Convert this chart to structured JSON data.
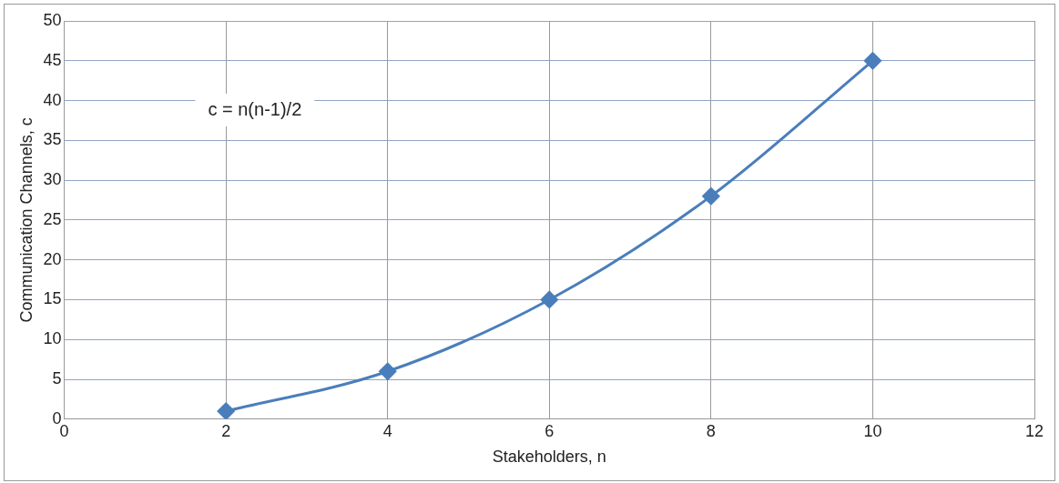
{
  "chart_data": {
    "type": "line",
    "xlabel": "Stakeholders, n",
    "ylabel": "Communication Channels, c",
    "x": [
      2,
      4,
      6,
      8,
      10
    ],
    "series": [
      {
        "color": "#4a7ebb",
        "values": [
          1,
          6,
          15,
          28,
          45
        ]
      }
    ],
    "xlim": [
      0,
      12
    ],
    "xticks": [
      0,
      2,
      4,
      6,
      8,
      10,
      12
    ],
    "ylim": [
      0,
      50
    ],
    "yticks": [
      0,
      5,
      10,
      15,
      20,
      25,
      30,
      35,
      40,
      45,
      50
    ],
    "grid": true,
    "legend": false,
    "marker": "diamond",
    "line_style": "solid",
    "annotations": [
      "c = n(n-1)/2"
    ]
  }
}
